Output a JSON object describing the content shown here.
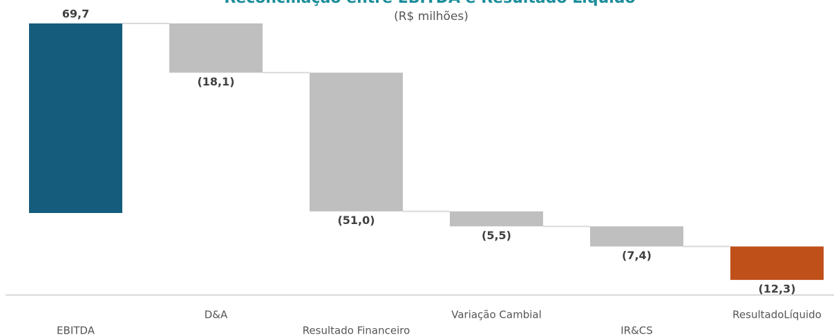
{
  "chart_data": {
    "type": "waterfall",
    "title": "Reconciliação entre EBITDA e Resultado Líquido",
    "subtitle": "(R$ milhões)",
    "categories": [
      "EBITDA",
      "D&A",
      "Resultado Financeiro",
      "Variação Cambial",
      "IR&CS",
      "ResultadoLíquido"
    ],
    "values": [
      69.7,
      -18.1,
      -51.0,
      -5.5,
      -7.4,
      -12.3
    ],
    "value_labels": [
      "69,7",
      "(18,1)",
      "(51,0)",
      "(5,5)",
      "(7,4)",
      "(12,3)"
    ],
    "colors": [
      "#155c7c",
      "#bfbfbf",
      "#bfbfbf",
      "#bfbfbf",
      "#bfbfbf",
      "#c0501a"
    ],
    "ylim": [
      -30,
      70
    ]
  }
}
